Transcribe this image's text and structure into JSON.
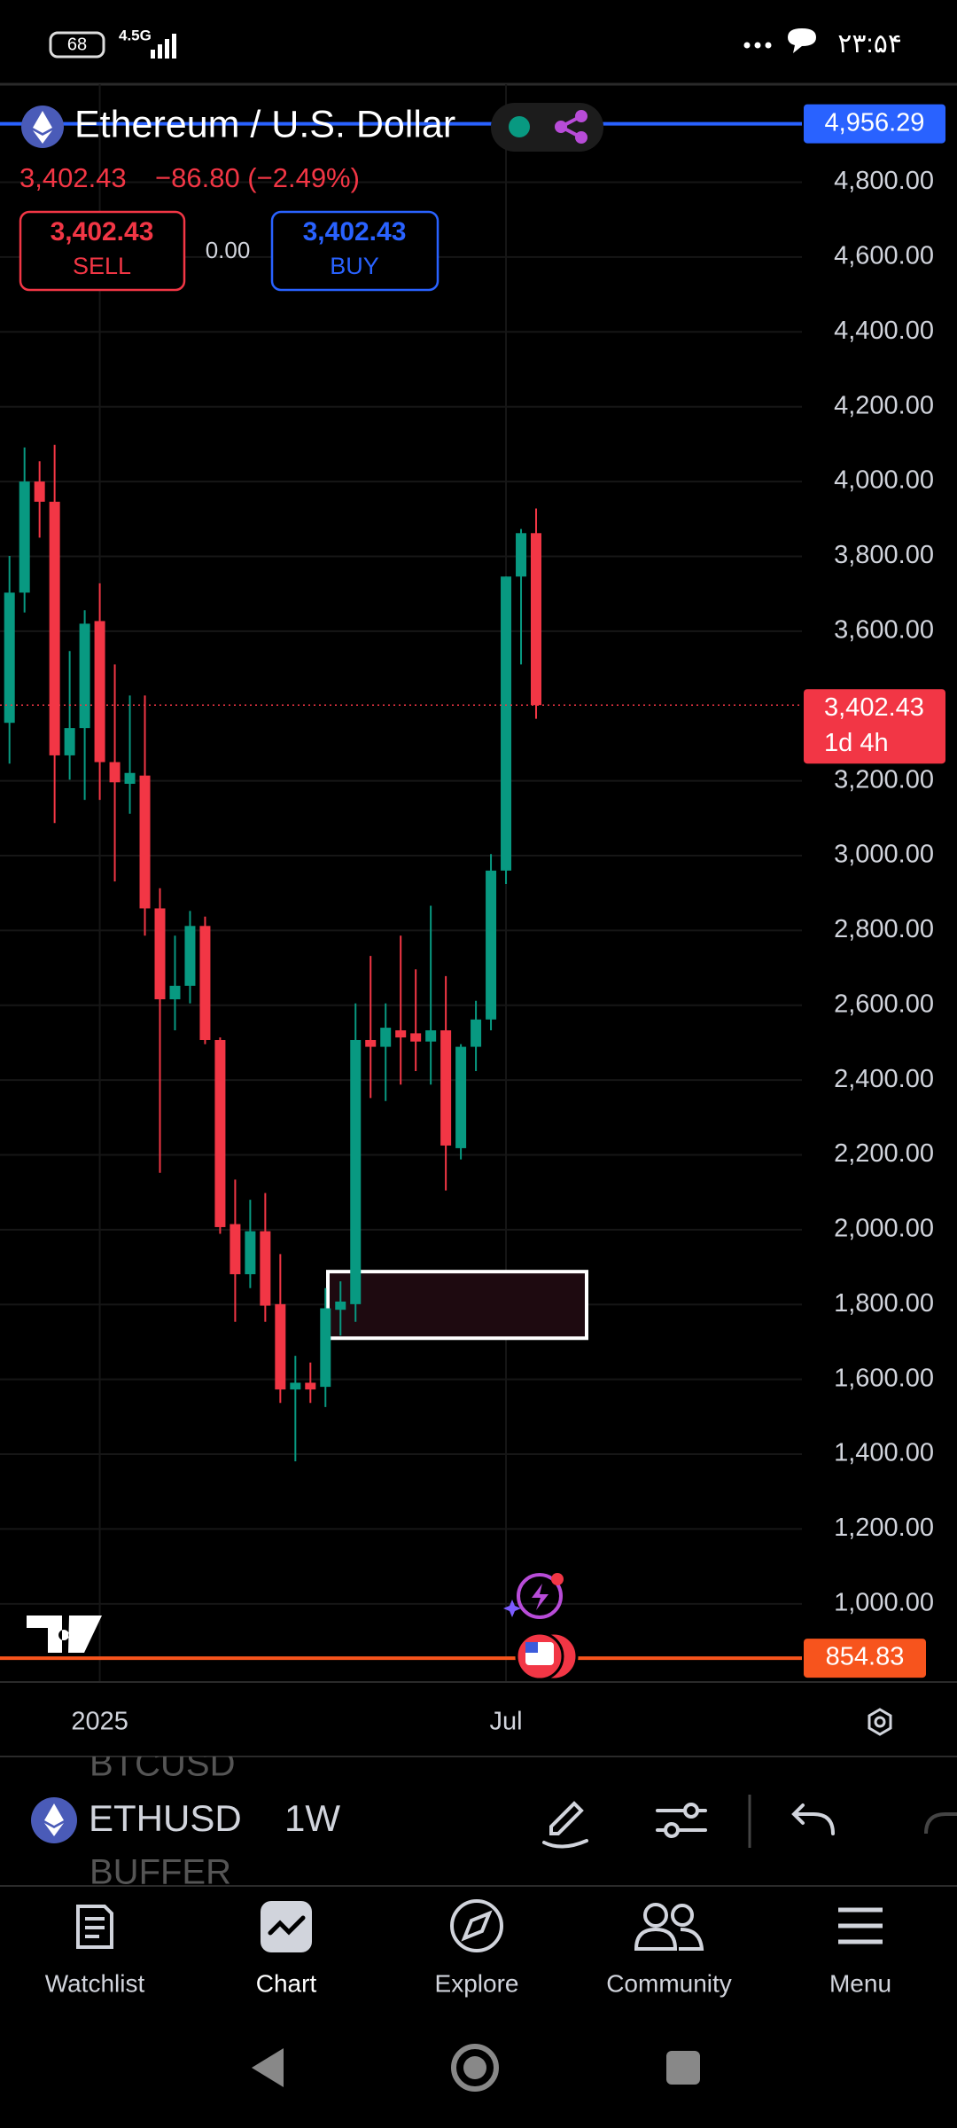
{
  "status_bar": {
    "battery": "68",
    "network": "4.5G",
    "time": "۲۳:۵۴"
  },
  "chart_data": {
    "type": "candlestick",
    "title": "Ethereum / U.S. Dollar",
    "last_price_label": "3,402.43",
    "change_label": "−86.80 (−2.49%)",
    "up_color": "#089981",
    "down_color": "#f23645",
    "candles": [
      {
        "open": 3355,
        "high": 3801,
        "low": 3246,
        "close": 3703
      },
      {
        "open": 3703,
        "high": 4091,
        "low": 3650,
        "close": 4000
      },
      {
        "open": 4000,
        "high": 4054,
        "low": 3850,
        "close": 3946
      },
      {
        "open": 3946,
        "high": 4098,
        "low": 3087,
        "close": 3268
      },
      {
        "open": 3268,
        "high": 3547,
        "low": 3203,
        "close": 3341
      },
      {
        "open": 3341,
        "high": 3656,
        "low": 3149,
        "close": 3620
      },
      {
        "open": 3627,
        "high": 3728,
        "low": 3149,
        "close": 3250
      },
      {
        "open": 3250,
        "high": 3511,
        "low": 2931,
        "close": 3196
      },
      {
        "open": 3192,
        "high": 3428,
        "low": 3112,
        "close": 3221
      },
      {
        "open": 3214,
        "high": 3428,
        "low": 2786,
        "close": 2859
      },
      {
        "open": 2859,
        "high": 2913,
        "low": 2152,
        "close": 2616
      },
      {
        "open": 2616,
        "high": 2786,
        "low": 2533,
        "close": 2652
      },
      {
        "open": 2652,
        "high": 2852,
        "low": 2605,
        "close": 2812
      },
      {
        "open": 2812,
        "high": 2837,
        "low": 2496,
        "close": 2507
      },
      {
        "open": 2507,
        "high": 2514,
        "low": 1989,
        "close": 2007
      },
      {
        "open": 2015,
        "high": 2134,
        "low": 1754,
        "close": 1881
      },
      {
        "open": 1881,
        "high": 2080,
        "low": 1844,
        "close": 1996
      },
      {
        "open": 1996,
        "high": 2098,
        "low": 1754,
        "close": 1797
      },
      {
        "open": 1801,
        "high": 1935,
        "low": 1537,
        "close": 1573
      },
      {
        "open": 1573,
        "high": 1663,
        "low": 1381,
        "close": 1591
      },
      {
        "open": 1591,
        "high": 1645,
        "low": 1537,
        "close": 1573
      },
      {
        "open": 1580,
        "high": 1844,
        "low": 1526,
        "close": 1790
      },
      {
        "open": 1786,
        "high": 1862,
        "low": 1717,
        "close": 1808
      },
      {
        "open": 1801,
        "high": 2605,
        "low": 1754,
        "close": 2507
      },
      {
        "open": 2507,
        "high": 2732,
        "low": 2352,
        "close": 2489
      },
      {
        "open": 2489,
        "high": 2605,
        "low": 2344,
        "close": 2540
      },
      {
        "open": 2533,
        "high": 2786,
        "low": 2388,
        "close": 2514
      },
      {
        "open": 2525,
        "high": 2696,
        "low": 2424,
        "close": 2503
      },
      {
        "open": 2503,
        "high": 2866,
        "low": 2388,
        "close": 2533
      },
      {
        "open": 2533,
        "high": 2678,
        "low": 2105,
        "close": 2225
      },
      {
        "open": 2218,
        "high": 2496,
        "low": 2188,
        "close": 2489
      },
      {
        "open": 2489,
        "high": 2612,
        "low": 2424,
        "close": 2562
      },
      {
        "open": 2562,
        "high": 3004,
        "low": 2533,
        "close": 2960
      },
      {
        "open": 2960,
        "high": 3746,
        "low": 2924,
        "close": 3746
      },
      {
        "open": 3746,
        "high": 3873,
        "low": 3511,
        "close": 3862
      },
      {
        "open": 3862,
        "high": 3928,
        "low": 3366,
        "close": 3402.43
      }
    ],
    "ylim": [
      791,
      5062
    ],
    "yticks": [
      {
        "value": 1000,
        "label": "1,000.00"
      },
      {
        "value": 1200,
        "label": "1,200.00"
      },
      {
        "value": 1400,
        "label": "1,400.00"
      },
      {
        "value": 1600,
        "label": "1,600.00"
      },
      {
        "value": 1800,
        "label": "1,800.00"
      },
      {
        "value": 2000,
        "label": "2,000.00"
      },
      {
        "value": 2200,
        "label": "2,200.00"
      },
      {
        "value": 2400,
        "label": "2,400.00"
      },
      {
        "value": 2600,
        "label": "2,600.00"
      },
      {
        "value": 2800,
        "label": "2,800.00"
      },
      {
        "value": 3000,
        "label": "3,000.00"
      },
      {
        "value": 3200,
        "label": "3,200.00"
      },
      {
        "value": 3600,
        "label": "3,600.00"
      },
      {
        "value": 3800,
        "label": "3,800.00"
      },
      {
        "value": 4000,
        "label": "4,000.00"
      },
      {
        "value": 4200,
        "label": "4,200.00"
      },
      {
        "value": 4400,
        "label": "4,400.00"
      },
      {
        "value": 4600,
        "label": "4,600.00"
      },
      {
        "value": 4800,
        "label": "4,800.00"
      }
    ],
    "xticks": [
      {
        "value": 6,
        "label": "2025"
      },
      {
        "value": 33,
        "label": "Jul"
      }
    ],
    "grid": true,
    "zone": {
      "top": 1888,
      "bottom": 1710
    },
    "price_lines": [
      {
        "value": 4956.29,
        "label": "4,956.29",
        "color": "#2962ff",
        "style": "solid"
      },
      {
        "value": 3402.43,
        "label": "3,402.43",
        "countdown": "1d 4h",
        "color": "#f23645",
        "style": "dotted"
      },
      {
        "value": 854.83,
        "label": "854.83",
        "color": "#f7541d",
        "style": "solid"
      }
    ]
  },
  "trade": {
    "sell_price": "3,402.43",
    "sell": "SELL",
    "spread": "0.00",
    "buy_price": "3,402.43",
    "buy": "BUY"
  },
  "toolbar": {
    "symbol_above": "BTCUSD",
    "symbol": "ETHUSD",
    "symbol_below": "BUFFER",
    "interval": "1W"
  },
  "nav": [
    "Watchlist",
    "Chart",
    "Explore",
    "Community",
    "Menu"
  ]
}
